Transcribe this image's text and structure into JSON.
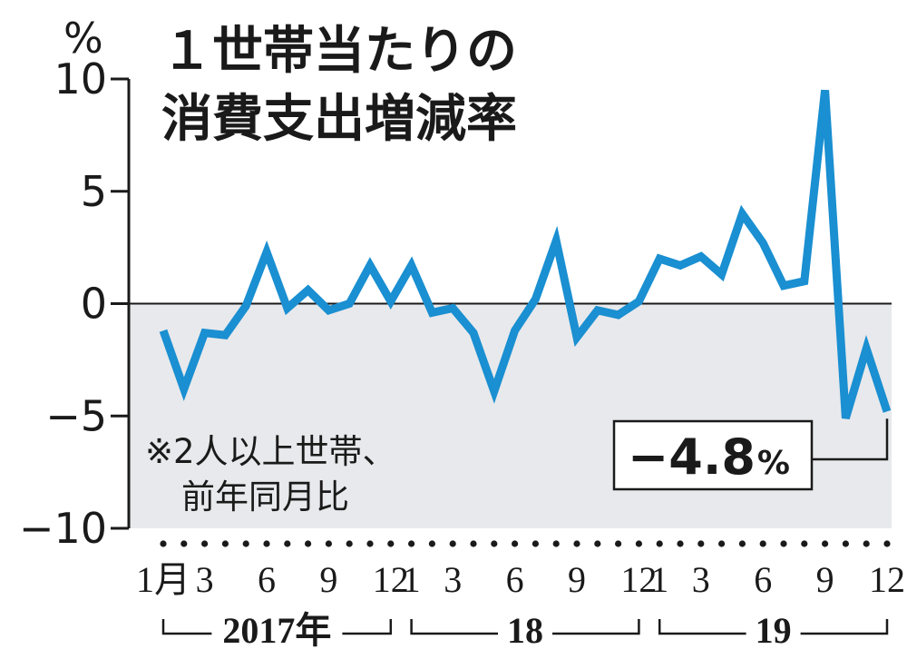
{
  "chart_data": {
    "type": "line",
    "title_line1": "１世帯当たりの",
    "title_line2": "消費支出増減率",
    "yunit": "%",
    "ylim": [
      -10,
      10
    ],
    "yticks": [
      10,
      5,
      0,
      -5,
      -10
    ],
    "ytick_labels": [
      "10",
      "5",
      "0",
      "−5",
      "−10"
    ],
    "note_line1": "※2人以上世帯、",
    "note_line2": "前年同月比",
    "x_tick_labels": [
      {
        "index": 0,
        "label": "1月"
      },
      {
        "index": 2,
        "label": "3"
      },
      {
        "index": 5,
        "label": "6"
      },
      {
        "index": 8,
        "label": "9"
      },
      {
        "index": 11,
        "label": "12"
      },
      {
        "index": 12,
        "label": "1"
      },
      {
        "index": 14,
        "label": "3"
      },
      {
        "index": 17,
        "label": "6"
      },
      {
        "index": 20,
        "label": "9"
      },
      {
        "index": 23,
        "label": "12"
      },
      {
        "index": 24,
        "label": "1"
      },
      {
        "index": 26,
        "label": "3"
      },
      {
        "index": 29,
        "label": "6"
      },
      {
        "index": 32,
        "label": "9"
      },
      {
        "index": 35,
        "label": "12"
      }
    ],
    "years": [
      {
        "label": "2017年",
        "start": 0,
        "end": 11
      },
      {
        "label": "18",
        "start": 12,
        "end": 23
      },
      {
        "label": "19",
        "start": 24,
        "end": 35
      }
    ],
    "series": [
      {
        "color": "#1a8fd1",
        "x": [
          "2017-01",
          "2017-02",
          "2017-03",
          "2017-04",
          "2017-05",
          "2017-06",
          "2017-07",
          "2017-08",
          "2017-09",
          "2017-10",
          "2017-11",
          "2017-12",
          "2018-01",
          "2018-02",
          "2018-03",
          "2018-04",
          "2018-05",
          "2018-06",
          "2018-07",
          "2018-08",
          "2018-09",
          "2018-10",
          "2018-11",
          "2018-12",
          "2019-01",
          "2019-02",
          "2019-03",
          "2019-04",
          "2019-05",
          "2019-06",
          "2019-07",
          "2019-08",
          "2019-09",
          "2019-10",
          "2019-11",
          "2019-12"
        ],
        "values": [
          -1.2,
          -3.8,
          -1.3,
          -1.4,
          -0.1,
          2.3,
          -0.2,
          0.6,
          -0.3,
          0.0,
          1.7,
          0.1,
          1.7,
          -0.4,
          -0.2,
          -1.3,
          -3.9,
          -1.2,
          0.2,
          2.8,
          -1.5,
          -0.3,
          -0.5,
          0.1,
          2.0,
          1.7,
          2.1,
          1.3,
          4.0,
          2.7,
          0.8,
          1.0,
          9.5,
          -5.1,
          -2.0,
          -4.8
        ]
      }
    ],
    "callout": {
      "index": 35,
      "value_text": "−4.8",
      "unit": "%"
    },
    "shade_below_zero": true,
    "colors": {
      "line": "#1a8fd1",
      "shade": "#e8e9ec",
      "axis": "#1a1a1a"
    }
  }
}
